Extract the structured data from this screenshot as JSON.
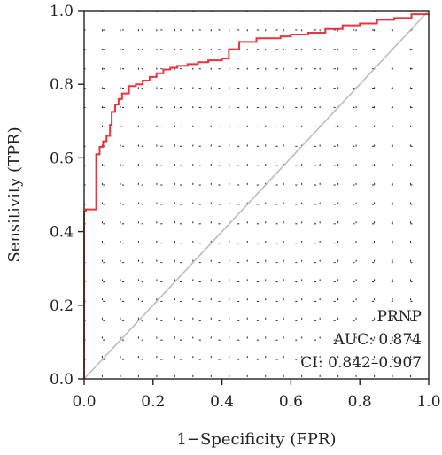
{
  "chart_data": {
    "type": "line",
    "title": "",
    "xlabel": "1−Specificity (FPR)",
    "ylabel": "Sensitivity (TPR)",
    "xlim": [
      0,
      1
    ],
    "ylim": [
      0,
      1
    ],
    "xticks": [
      "0.0",
      "0.2",
      "0.4",
      "0.6",
      "0.8",
      "1.0"
    ],
    "yticks": [
      "0.0",
      "0.2",
      "0.4",
      "0.6",
      "0.8",
      "1.0"
    ],
    "grid": "dotted",
    "annotations": [
      "PRNP",
      "AUC: 0.874",
      "CI: 0.842–0.907"
    ],
    "colors": {
      "roc": "#e8343e",
      "diagonal": "#bdbdbd",
      "axis": "#222222"
    },
    "series": [
      {
        "x": [
          0,
          0,
          0.005,
          0.005,
          0.035,
          0.035,
          0.045,
          0.045,
          0.055,
          0.055,
          0.065,
          0.065,
          0.075,
          0.075,
          0.08,
          0.08,
          0.09,
          0.09,
          0.1,
          0.1,
          0.11,
          0.11,
          0.13,
          0.13,
          0.15,
          0.15,
          0.17,
          0.17,
          0.19,
          0.19,
          0.21,
          0.21,
          0.23,
          0.23,
          0.25,
          0.25,
          0.27,
          0.27,
          0.3,
          0.3,
          0.33,
          0.33,
          0.36,
          0.36,
          0.4,
          0.4,
          0.42,
          0.42,
          0.45,
          0.45,
          0.5,
          0.5,
          0.57,
          0.57,
          0.6,
          0.6,
          0.65,
          0.65,
          0.7,
          0.7,
          0.75,
          0.75,
          0.8,
          0.8,
          0.85,
          0.85,
          0.9,
          0.9,
          0.95,
          0.95,
          1.0
        ],
        "y": [
          0,
          0.455,
          0.455,
          0.46,
          0.46,
          0.61,
          0.61,
          0.63,
          0.63,
          0.645,
          0.645,
          0.66,
          0.66,
          0.69,
          0.69,
          0.725,
          0.725,
          0.745,
          0.745,
          0.76,
          0.76,
          0.775,
          0.775,
          0.795,
          0.795,
          0.8,
          0.8,
          0.81,
          0.81,
          0.82,
          0.82,
          0.83,
          0.83,
          0.84,
          0.84,
          0.845,
          0.845,
          0.85,
          0.85,
          0.855,
          0.855,
          0.86,
          0.86,
          0.865,
          0.865,
          0.87,
          0.87,
          0.895,
          0.895,
          0.915,
          0.915,
          0.925,
          0.925,
          0.93,
          0.93,
          0.935,
          0.935,
          0.94,
          0.94,
          0.95,
          0.95,
          0.96,
          0.96,
          0.965,
          0.965,
          0.975,
          0.975,
          0.98,
          0.98,
          0.99,
          0.99
        ]
      }
    ]
  }
}
